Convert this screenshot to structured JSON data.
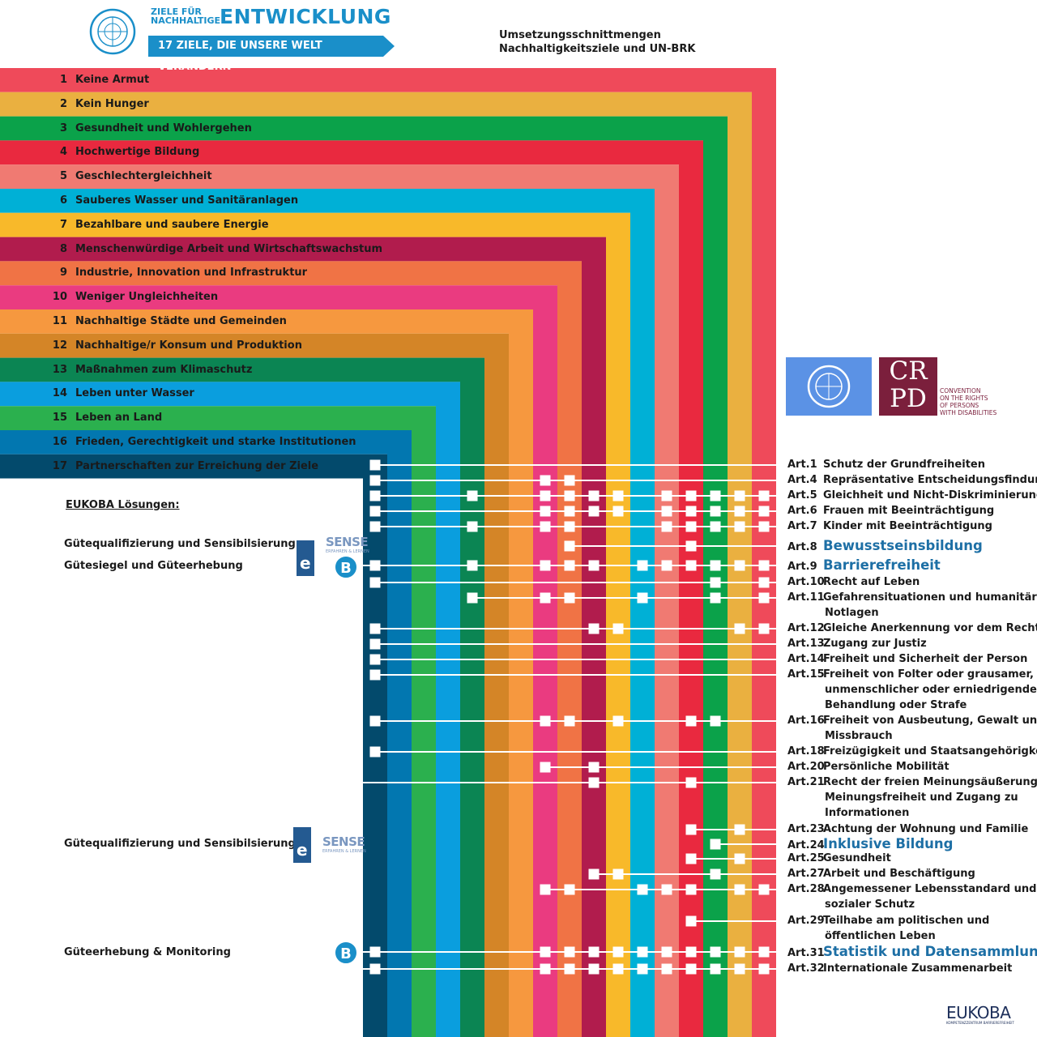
{
  "header": {
    "ziele_line1": "ZIELE FÜR",
    "ziele_line2": "NACHHALTIGE",
    "ziele_big": "ENTWICKLUNG",
    "ziele_banner": "17 ZIELE, DIE UNSERE WELT VERÄNDERN",
    "title_line1": "Umsetzungsschnittmengen",
    "title_line2": "Nachhaltigkeitsziele und UN-BRK"
  },
  "goals": [
    {
      "num": "1",
      "label": "Keine Armut",
      "color": "#e5243b"
    },
    {
      "num": "2",
      "label": "Kein Hunger",
      "color": "#dda63a"
    },
    {
      "num": "3",
      "label": "Gesundheit und Wohlergehen",
      "color": "#4c9f38"
    },
    {
      "num": "4",
      "label": "Hochwertige Bildung",
      "color": "#c5192d"
    },
    {
      "num": "5",
      "label": "Geschlechtergleichheit",
      "color": "#ff3a21"
    },
    {
      "num": "6",
      "label": "Sauberes Wasser und Sanitäranlagen",
      "color": "#26bde2"
    },
    {
      "num": "7",
      "label": "Bezahlbare und saubere Energie",
      "color": "#fcc30b"
    },
    {
      "num": "8",
      "label": "Menschenwürdige Arbeit und Wirtschaftswachstum",
      "color": "#a21942"
    },
    {
      "num": "9",
      "label": "Industrie, Innovation und Infrastruktur",
      "color": "#fd6925"
    },
    {
      "num": "10",
      "label": "Weniger Ungleichheiten",
      "color": "#dd1367"
    },
    {
      "num": "11",
      "label": "Nachhaltige Städte und Gemeinden",
      "color": "#fd9d24"
    },
    {
      "num": "12",
      "label": "Nachhaltige/r Konsum und Produktion",
      "color": "#bf8b2e"
    },
    {
      "num": "13",
      "label": "Maßnahmen zum Klimaschutz",
      "color": "#3f7e44"
    },
    {
      "num": "14",
      "label": "Leben unter Wasser",
      "color": "#0a97d9"
    },
    {
      "num": "15",
      "label": "Leben an Land",
      "color": "#56c02b"
    },
    {
      "num": "16",
      "label": "Frieden, Gerechtigkeit und starke Institutionen",
      "color": "#00689d"
    },
    {
      "num": "17",
      "label": "Partnerschaften zur Erreichung der Ziele",
      "color": "#19486a"
    }
  ],
  "display_colors": [
    "#ef4a5a",
    "#eab040",
    "#0ba24a",
    "#e9293f",
    "#f07a72",
    "#00b0d6",
    "#f8b92a",
    "#b11c4d",
    "#f07345",
    "#ea3b80",
    "#f6983f",
    "#d48527",
    "#0b8553",
    "#0a9ede",
    "#2bb04e",
    "#0277b0",
    "#034a6c"
  ],
  "articles": [
    {
      "code": "Art.1",
      "label": "Schutz der Grundfreiheiten",
      "goals": [
        17
      ]
    },
    {
      "code": "Art.4",
      "label": "Repräsentative Entscheidungsfindung",
      "goals": [
        17,
        10,
        9
      ]
    },
    {
      "code": "Art.5",
      "label": "Gleichheit und Nicht-Diskriminierung",
      "goals": [
        17,
        13,
        10,
        9,
        8,
        7,
        5,
        4,
        3,
        2,
        1
      ]
    },
    {
      "code": "Art.6",
      "label": "Frauen mit Beeinträchtigung",
      "goals": [
        17,
        10,
        9,
        8,
        7,
        5,
        4,
        3,
        2,
        1
      ]
    },
    {
      "code": "Art.7",
      "label": "Kinder mit Beeinträchtigung",
      "goals": [
        17,
        13,
        10,
        9,
        5,
        4,
        3,
        2,
        1
      ]
    },
    {
      "code": "Art.8",
      "label": "Bewusstseinsbildung",
      "goals": [
        9,
        4
      ],
      "highlight": true
    },
    {
      "code": "Art.9",
      "label": "Barrierefreiheit",
      "goals": [
        18,
        17,
        13,
        10,
        9,
        8,
        6,
        5,
        4,
        3,
        2,
        1
      ],
      "highlight": true
    },
    {
      "code": "Art.10",
      "label": "Recht auf Leben",
      "goals": [
        17,
        3,
        1
      ]
    },
    {
      "code": "Art.11",
      "label": "Gefahrensituationen und humanitäre",
      "label2": "Notlagen",
      "goals": [
        13,
        10,
        9,
        6,
        3,
        1
      ]
    },
    {
      "code": "Art.12",
      "label": "Gleiche Anerkennung vor dem Recht",
      "goals": [
        17,
        8,
        7,
        2,
        1
      ]
    },
    {
      "code": "Art.13",
      "label": "Zugang zur Justiz",
      "goals": [
        17
      ]
    },
    {
      "code": "Art.14",
      "label": "Freiheit und Sicherheit der Person",
      "goals": [
        17
      ]
    },
    {
      "code": "Art.15",
      "label": "Freiheit von Folter oder grausamer,",
      "label2": "unmenschlicher oder erniedrigender",
      "label3": "Behandlung oder Strafe",
      "goals": [
        17
      ]
    },
    {
      "code": "Art.16",
      "label": "Freiheit von Ausbeutung, Gewalt und",
      "label2": "Missbrauch",
      "goals": [
        17,
        10,
        9,
        7,
        4,
        3
      ]
    },
    {
      "code": "Art.18",
      "label": "Freizügigkeit und Staatsangehörigkeit",
      "goals": [
        17
      ]
    },
    {
      "code": "Art.20",
      "label": "Persönliche Mobilität",
      "goals": [
        10,
        8
      ]
    },
    {
      "code": "Art.21",
      "label": "Recht der freien Meinungsäußerung,",
      "label2": "Meinungsfreiheit und Zugang zu",
      "label3": "Informationen",
      "goals": [
        18,
        8,
        4
      ]
    },
    {
      "code": "Art.23",
      "label": "Achtung der Wohnung und Familie",
      "goals": [
        4,
        2
      ]
    },
    {
      "code": "Art.24",
      "label": "Inklusive Bildung",
      "goals": [
        3
      ],
      "highlight": true
    },
    {
      "code": "Art.25",
      "label": "Gesundheit",
      "goals": [
        4,
        2
      ]
    },
    {
      "code": "Art.27",
      "label": "Arbeit und Beschäftigung",
      "goals": [
        8,
        7,
        3
      ]
    },
    {
      "code": "Art.28",
      "label": "Angemessener Lebensstandard und",
      "label2": "sozialer Schutz",
      "goals": [
        10,
        9,
        6,
        5,
        4,
        2,
        1
      ]
    },
    {
      "code": "Art.29",
      "label": "Teilhabe am politischen und",
      "label2": "öffentlichen Leben",
      "goals": [
        4
      ]
    },
    {
      "code": "Art.31",
      "label": "Statistik und Datensammlung",
      "goals": [
        18,
        17,
        10,
        9,
        8,
        7,
        6,
        5,
        4,
        3,
        2,
        1
      ],
      "highlight": true
    },
    {
      "code": "Art.32",
      "label": "Internationale Zusammenarbeit",
      "goals": [
        18,
        17,
        10,
        9,
        8,
        7,
        6,
        5,
        4,
        3,
        2,
        1
      ]
    }
  ],
  "eukoba": {
    "title": "EUKOBA Lösungen:",
    "solution1a": "Gütequalifizierung und Sensibilsierung",
    "solution1b": "Gütesiegel und Güteerhebung",
    "solution2": "Gütequalifizierung und Sensibilsierung",
    "solution3": "Güteerhebung & Monitoring",
    "badge": "B",
    "sense_logo": "SENSE",
    "sense_sub": "ERFAHREN & LERNEN",
    "euro_logo": "e",
    "eukoba_logo": "EUKOBA",
    "eukoba_sub": "KOMPETENZZENTRUM BARRIEREFREIHEIT"
  },
  "crpd": {
    "letters": "CR PD",
    "text_line1": "CONVENTION",
    "text_line2": "ON THE RIGHTS",
    "text_line3": "OF PERSONS",
    "text_line4": "WITH DISABILITIES"
  }
}
